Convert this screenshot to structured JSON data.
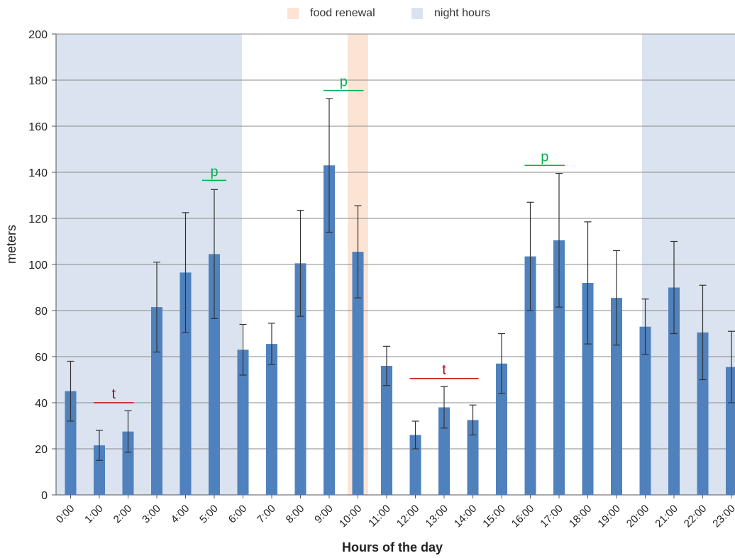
{
  "chart_data": {
    "type": "bar",
    "xlabel": "Hours of the day",
    "ylabel": "meters",
    "ylim": [
      0,
      200
    ],
    "yticks": [
      0,
      20,
      40,
      60,
      80,
      100,
      120,
      140,
      160,
      180,
      200
    ],
    "grid": true,
    "legend": {
      "position": "top-center",
      "entries": [
        {
          "label": "food renewal",
          "color": "#fce4d4"
        },
        {
          "label": "night hours",
          "color": "#dae3ef"
        }
      ]
    },
    "categories": [
      "0:00",
      "1:00",
      "2:00",
      "3:00",
      "4:00",
      "5:00",
      "6:00",
      "7:00",
      "8:00",
      "9:00",
      "10:00",
      "11:00",
      "12:00",
      "13:00",
      "14:00",
      "15:00",
      "16:00",
      "17:00",
      "18:00",
      "19:00",
      "20:00",
      "21:00",
      "22:00",
      "23:00"
    ],
    "series": [
      {
        "values": [
          45,
          21.5,
          27.5,
          81.5,
          96.5,
          104.5,
          63,
          65.5,
          100.5,
          143,
          105.5,
          56,
          26,
          38,
          32.5,
          57,
          103.5,
          110.5,
          92,
          85.5,
          73,
          90,
          70.5,
          55.5
        ],
        "error": [
          13,
          6.5,
          9,
          19.5,
          26,
          28,
          11,
          9,
          23,
          29,
          20,
          8.5,
          6,
          9,
          6.5,
          13,
          23.5,
          29,
          26.5,
          20.5,
          12,
          20,
          20.5,
          15.5
        ],
        "color": "#4f81bd"
      }
    ],
    "night_bands": [
      [
        "0:00",
        "6:00"
      ],
      [
        "21:00",
        "23:00"
      ]
    ],
    "food_renewal_at": "10:00",
    "annotations": [
      {
        "text": "t",
        "from": "1:00",
        "to": "2:00",
        "y": 40,
        "color": "#c00000"
      },
      {
        "text": "p",
        "from": "5:00",
        "to": "5:00",
        "y": 136.5,
        "color": "#00b050"
      },
      {
        "text": "p",
        "from": "9:00",
        "to": "10:00",
        "y": 175.5,
        "color": "#00b050"
      },
      {
        "text": "t",
        "from": "12:00",
        "to": "14:00",
        "y": 50.5,
        "color": "#c00000"
      },
      {
        "text": "p",
        "from": "16:00",
        "to": "17:00",
        "y": 143,
        "color": "#00b050"
      }
    ]
  }
}
